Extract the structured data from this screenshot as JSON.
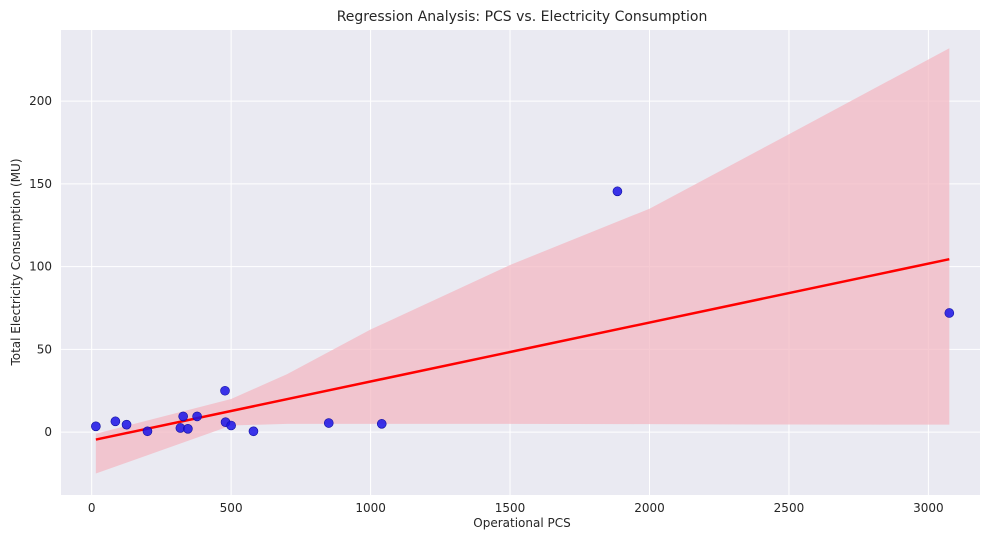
{
  "chart_data": {
    "type": "scatter",
    "title": "Regression Analysis: PCS vs. Electricity Consumption",
    "xlabel": "Operational PCS",
    "ylabel": "Total Electricity Consumption (MU)",
    "xlim": [
      -110,
      3185
    ],
    "ylim": [
      -38,
      243
    ],
    "xticks": [
      0,
      500,
      1000,
      1500,
      2000,
      2500,
      3000
    ],
    "yticks": [
      0,
      50,
      100,
      150,
      200
    ],
    "grid": true,
    "series": [
      {
        "type": "scatter",
        "color": "#1a12e6",
        "x": [
          15,
          85,
          125,
          200,
          318,
          328,
          345,
          378,
          478,
          480,
          500,
          580,
          850,
          1040,
          1885,
          3075
        ],
        "y": [
          3.5,
          6.5,
          4.5,
          0.5,
          2.5,
          9.5,
          2,
          9.5,
          25,
          6,
          4,
          0.5,
          5.5,
          5,
          145.5,
          72
        ]
      },
      {
        "type": "line",
        "color": "#ff0000",
        "x": [
          15,
          3075
        ],
        "y": [
          -4.5,
          104.5
        ]
      },
      {
        "type": "band",
        "color": "#f3b8c3",
        "x": [
          15,
          500,
          700,
          1000,
          1500,
          2000,
          2500,
          3075
        ],
        "upper": [
          -1,
          20,
          35,
          62,
          101,
          135,
          180,
          232
        ],
        "lower": [
          -25,
          4,
          5,
          5,
          5,
          4.8,
          4.6,
          4.5
        ]
      }
    ]
  }
}
